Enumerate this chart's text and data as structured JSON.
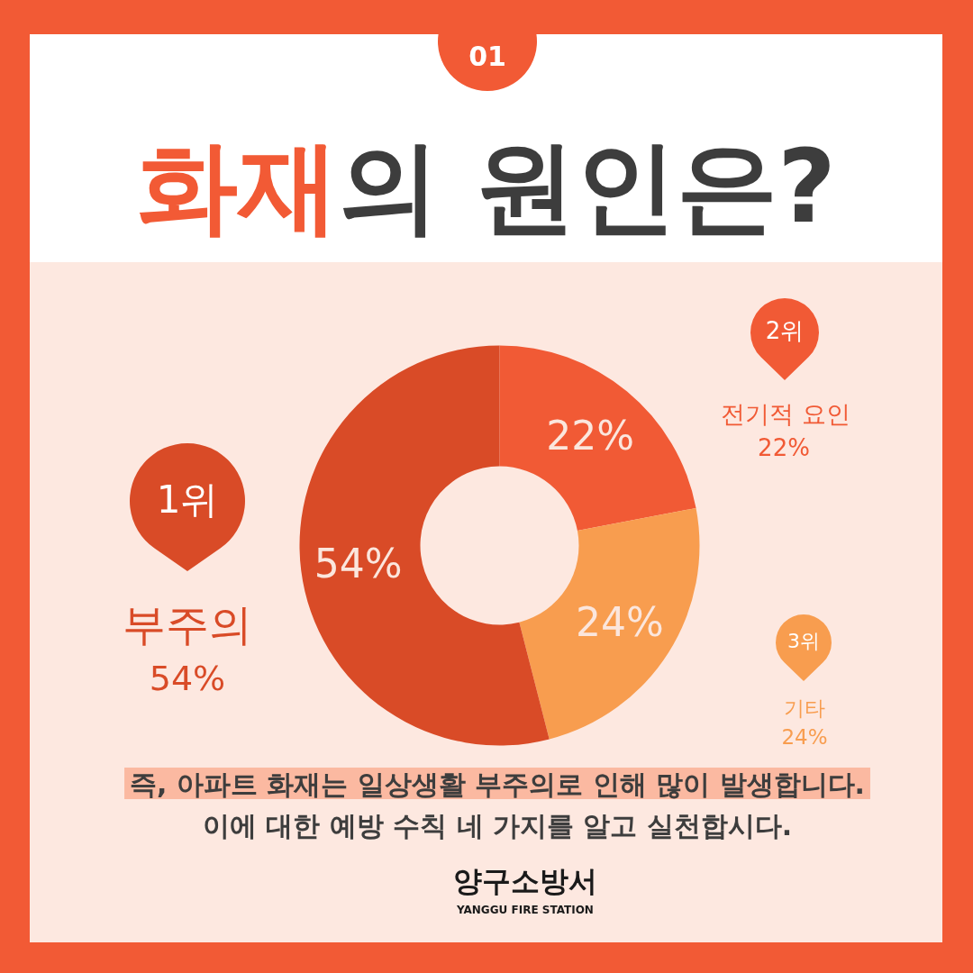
{
  "chart_data": {
    "type": "donut",
    "title": "**화재**의 원인은?",
    "categories": [
      "전기적 요인",
      "기타",
      "부주의"
    ],
    "values": [
      22,
      24,
      54
    ],
    "colors": [
      "#f15a35",
      "#f89d4f",
      "#d94b27"
    ],
    "value_labels": [
      "22%",
      "24%",
      "54%"
    ],
    "annotations": [
      "01",
      "2위",
      "3위",
      "1위",
      "즉, 아파트 화재는 일상생활 부주의로 인해 많이 발생합니다.",
      "이에 대한 예방 수칙 네 가지를 알고 실천합시다.",
      "양구소방서",
      "YANGGU FIRE STATION"
    ]
  }
}
